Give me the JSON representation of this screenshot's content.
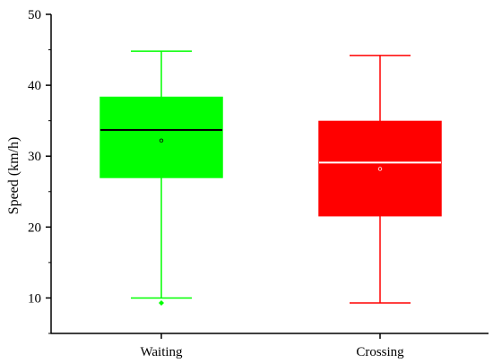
{
  "chart_data": {
    "type": "box",
    "title": "",
    "xlabel": "",
    "ylabel": "Speed (km/h)",
    "ylim": [
      5,
      50
    ],
    "yticks": [
      10,
      20,
      30,
      40,
      50
    ],
    "grid": false,
    "categories": [
      "Waiting",
      "Crossing"
    ],
    "boxes": [
      {
        "category": "Waiting",
        "color": "#00ff00",
        "median_color": "#000000",
        "whisker_low": 10.0,
        "q1": 27.0,
        "median": 33.7,
        "q3": 38.3,
        "whisker_high": 44.8,
        "mean": 32.2,
        "outliers": [
          9.3
        ]
      },
      {
        "category": "Crossing",
        "color": "#ff0000",
        "median_color": "#ffffff",
        "whisker_low": 9.3,
        "q1": 21.6,
        "median": 29.1,
        "q3": 34.9,
        "whisker_high": 44.2,
        "mean": 28.2,
        "outliers": []
      }
    ]
  }
}
